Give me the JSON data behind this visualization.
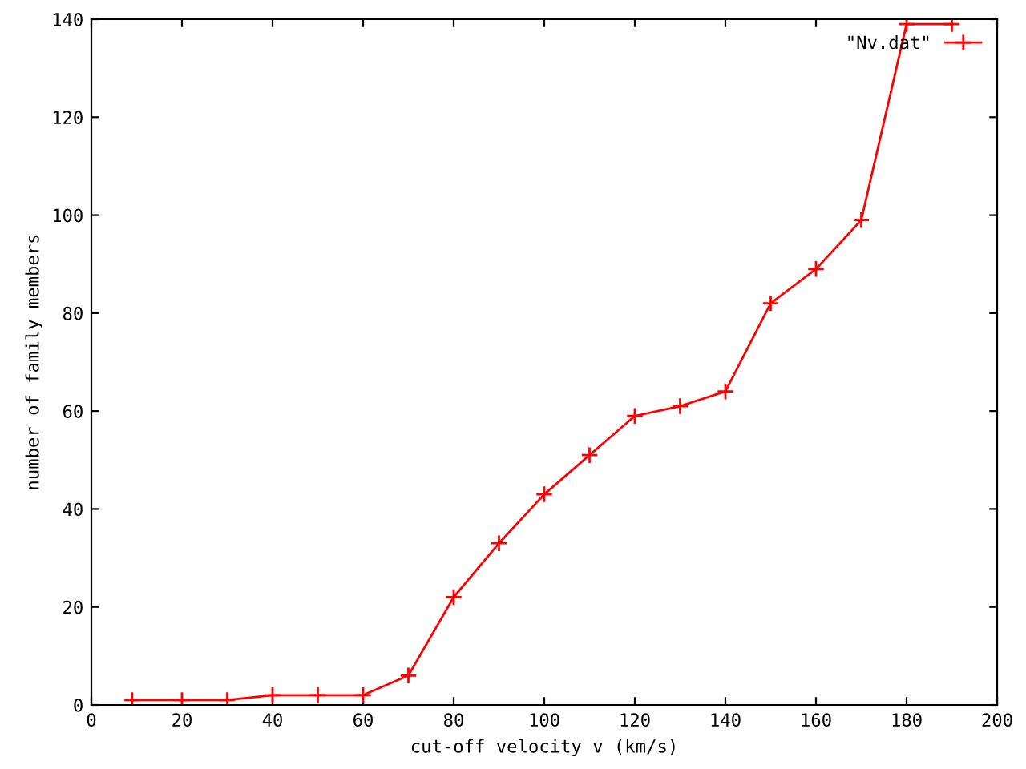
{
  "chart_data": {
    "type": "line",
    "xlabel": "cut-off velocity v (km/s)",
    "ylabel": "number of family members",
    "x": [
      9,
      20,
      30,
      40,
      50,
      60,
      70,
      80,
      90,
      100,
      110,
      120,
      130,
      140,
      150,
      160,
      170,
      180,
      190
    ],
    "series": [
      {
        "name": "\"Nv.dat\"",
        "color": "#ff0000",
        "values": [
          1,
          1,
          1,
          2,
          2,
          2,
          6,
          22,
          33,
          43,
          51,
          59,
          61,
          64,
          82,
          89,
          99,
          139,
          139
        ]
      }
    ],
    "xlim": [
      0,
      200
    ],
    "xticks": [
      0,
      20,
      40,
      60,
      80,
      100,
      120,
      140,
      160,
      180,
      200
    ],
    "ylim": [
      0,
      140
    ],
    "yticks": [
      0,
      20,
      40,
      60,
      80,
      100,
      120,
      140
    ],
    "grid": false,
    "legend": "top right",
    "marker": "cross",
    "line_style": "solid"
  }
}
